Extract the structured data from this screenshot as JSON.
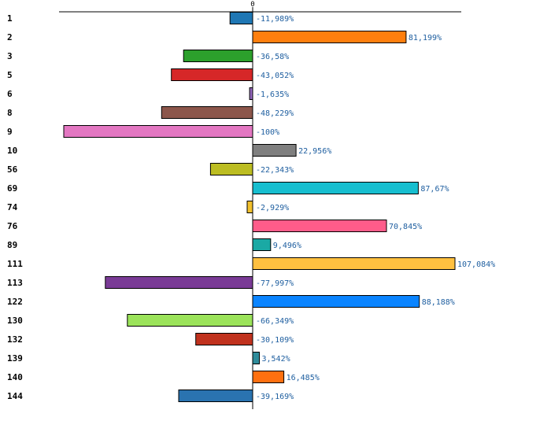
{
  "chart_data": {
    "type": "bar",
    "orientation": "horizontal",
    "title": "",
    "xlabel": "",
    "ylabel": "",
    "zero_tick_label": "0",
    "xlim": [
      -100,
      107.084
    ],
    "categories": [
      "1",
      "2",
      "3",
      "5",
      "6",
      "8",
      "9",
      "10",
      "56",
      "69",
      "74",
      "76",
      "89",
      "111",
      "113",
      "122",
      "130",
      "132",
      "139",
      "140",
      "144"
    ],
    "values": [
      -11.989,
      81.199,
      -36.58,
      -43.052,
      -1.635,
      -48.229,
      -100,
      22.956,
      -22.343,
      87.67,
      -2.929,
      70.845,
      9.496,
      107.084,
      -77.997,
      88.188,
      -66.349,
      -30.109,
      3.542,
      16.485,
      -39.169
    ],
    "value_labels": [
      "-11,989%",
      "81,199%",
      "-36,58%",
      "-43,052%",
      "-1,635%",
      "-48,229%",
      "-100%",
      "22,956%",
      "-22,343%",
      "87,67%",
      "-2,929%",
      "70,845%",
      "9,496%",
      "107,084%",
      "-77,997%",
      "88,188%",
      "-66,349%",
      "-30,109%",
      "3,542%",
      "16,485%",
      "-39,169%"
    ],
    "colors": [
      "#1f77b4",
      "#ff7f0e",
      "#2ca02c",
      "#d62728",
      "#9467bd",
      "#8c564b",
      "#e377c2",
      "#7f7f7f",
      "#bcbd22",
      "#17becf",
      "#f2c12e",
      "#ff5c8a",
      "#1aa9a4",
      "#ffc040",
      "#7a3b96",
      "#0a84ff",
      "#9be35a",
      "#c0321e",
      "#2e8b9a",
      "#ff7010",
      "#2a73b0"
    ]
  }
}
